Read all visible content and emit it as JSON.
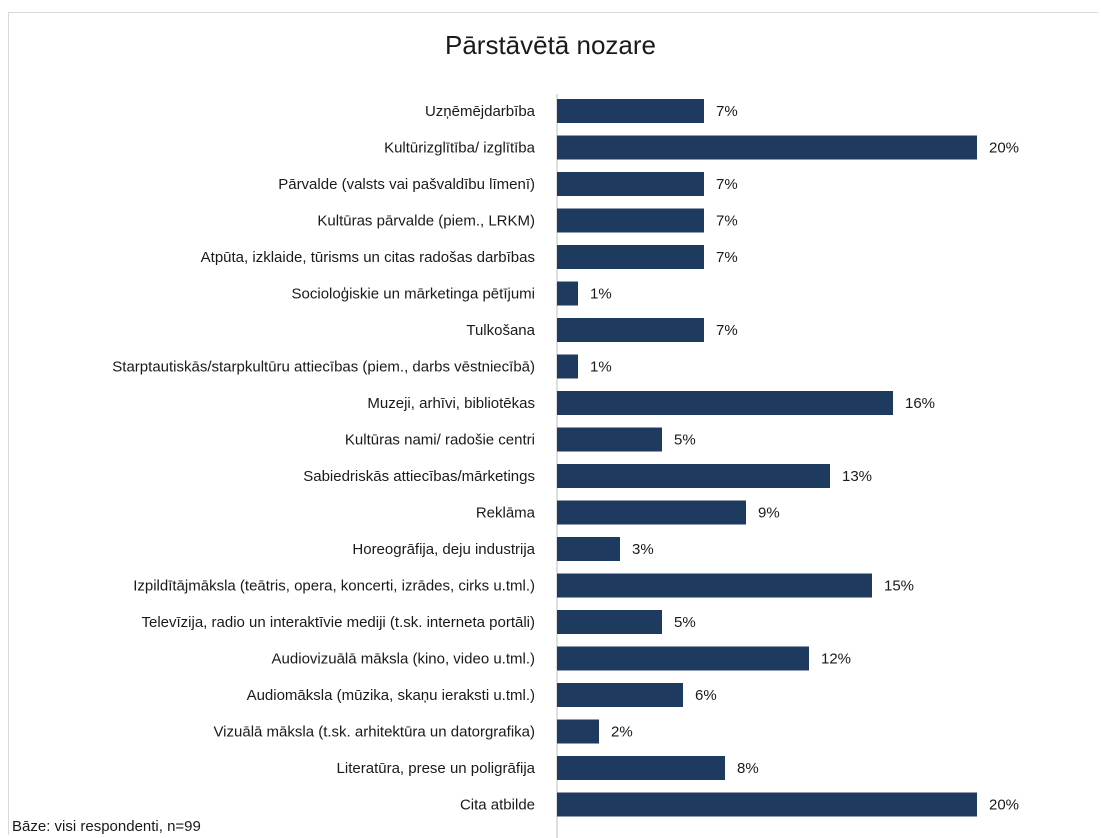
{
  "chart_data": {
    "type": "bar",
    "orientation": "horizontal",
    "title": "Pārstāvētā nozare",
    "categories": [
      "Uzņēmējdarbība",
      "Kultūrizglītība/ izglītība",
      "Pārvalde (valsts vai pašvaldību līmenī)",
      "Kultūras pārvalde (piem., LRKM)",
      "Atpūta, izklaide, tūrisms un citas radošas darbības",
      "Socioloģiskie un mārketinga pētījumi",
      "Tulkošana",
      "Starptautiskās/starpkultūru attiecības (piem., darbs vēstniecībā)",
      "Muzeji, arhīvi, bibliotēkas",
      "Kultūras nami/ radošie centri",
      "Sabiedriskās attiecības/mārketings",
      "Reklāma",
      "Horeogrāfija, deju industrija",
      "Izpildītājmāksla (teātris, opera, koncerti, izrādes, cirks u.tml.)",
      "Televīzija, radio un interaktīvie mediji (t.sk. interneta portāli)",
      "Audiovizuālā māksla (kino, video u.tml.)",
      "Audiomāksla (mūzika, skaņu ieraksti u.tml.)",
      "Vizuālā māksla (t.sk. arhitektūra un datorgrafika)",
      "Literatūra, prese un poligrāfija",
      "Cita atbilde"
    ],
    "values": [
      7,
      20,
      7,
      7,
      7,
      1,
      7,
      1,
      16,
      5,
      13,
      9,
      3,
      15,
      5,
      12,
      6,
      2,
      8,
      20
    ],
    "value_labels": [
      "7%",
      "20%",
      "7%",
      "7%",
      "7%",
      "1%",
      "7%",
      "1%",
      "16%",
      "5%",
      "13%",
      "9%",
      "3%",
      "15%",
      "5%",
      "12%",
      "6%",
      "2%",
      "8%",
      "20%"
    ],
    "unit": "%",
    "xlim": [
      0,
      20
    ],
    "grid": false,
    "bar_color": "#1f3a5f"
  },
  "footnote": "Bāze: visi respondenti, n=99"
}
